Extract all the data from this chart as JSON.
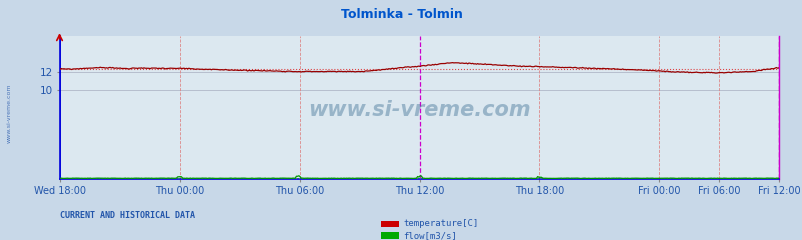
{
  "title": "Tolminka - Tolmin",
  "title_color": "#0055cc",
  "bg_color": "#c8d8e8",
  "plot_bg_color": "#dce8f0",
  "grid_color_h": "#b0b8c8",
  "ylabel_color": "#2255aa",
  "xlabel_color": "#2255aa",
  "watermark_text": "www.si-vreme.com",
  "watermark_color": "#1a5580",
  "watermark_alpha": 0.35,
  "sidebar_text": "www.si-vreme.com",
  "sidebar_color": "#2255aa",
  "bottom_label": "CURRENT AND HISTORICAL DATA",
  "bottom_label_color": "#2255aa",
  "legend_items": [
    "temperature[C]",
    "flow[m3/s]"
  ],
  "legend_colors": [
    "#cc0000",
    "#00aa00"
  ],
  "temp_color": "#990000",
  "temp_dotted_color": "#dd4444",
  "flow_color": "#009900",
  "flow_dotted_color": "#44aa44",
  "ylim": [
    0,
    16
  ],
  "yticks": [
    10,
    12
  ],
  "num_points": 576,
  "xtick_labels": [
    "Wed 18:00",
    "Thu 00:00",
    "Thu 06:00",
    "Thu 12:00",
    "Thu 18:00",
    "Fri 00:00",
    "Fri 06:00",
    "Fri 12:00"
  ],
  "border_left_color": "#0000dd",
  "border_bottom_color": "#0000dd",
  "border_right_color": "#cc00cc",
  "vline_normal_color": "#dd8888",
  "vline_special_color": "#cc00cc",
  "temp_noise": 0.025,
  "flow_base": 0.08,
  "flow_noise": 0.04
}
